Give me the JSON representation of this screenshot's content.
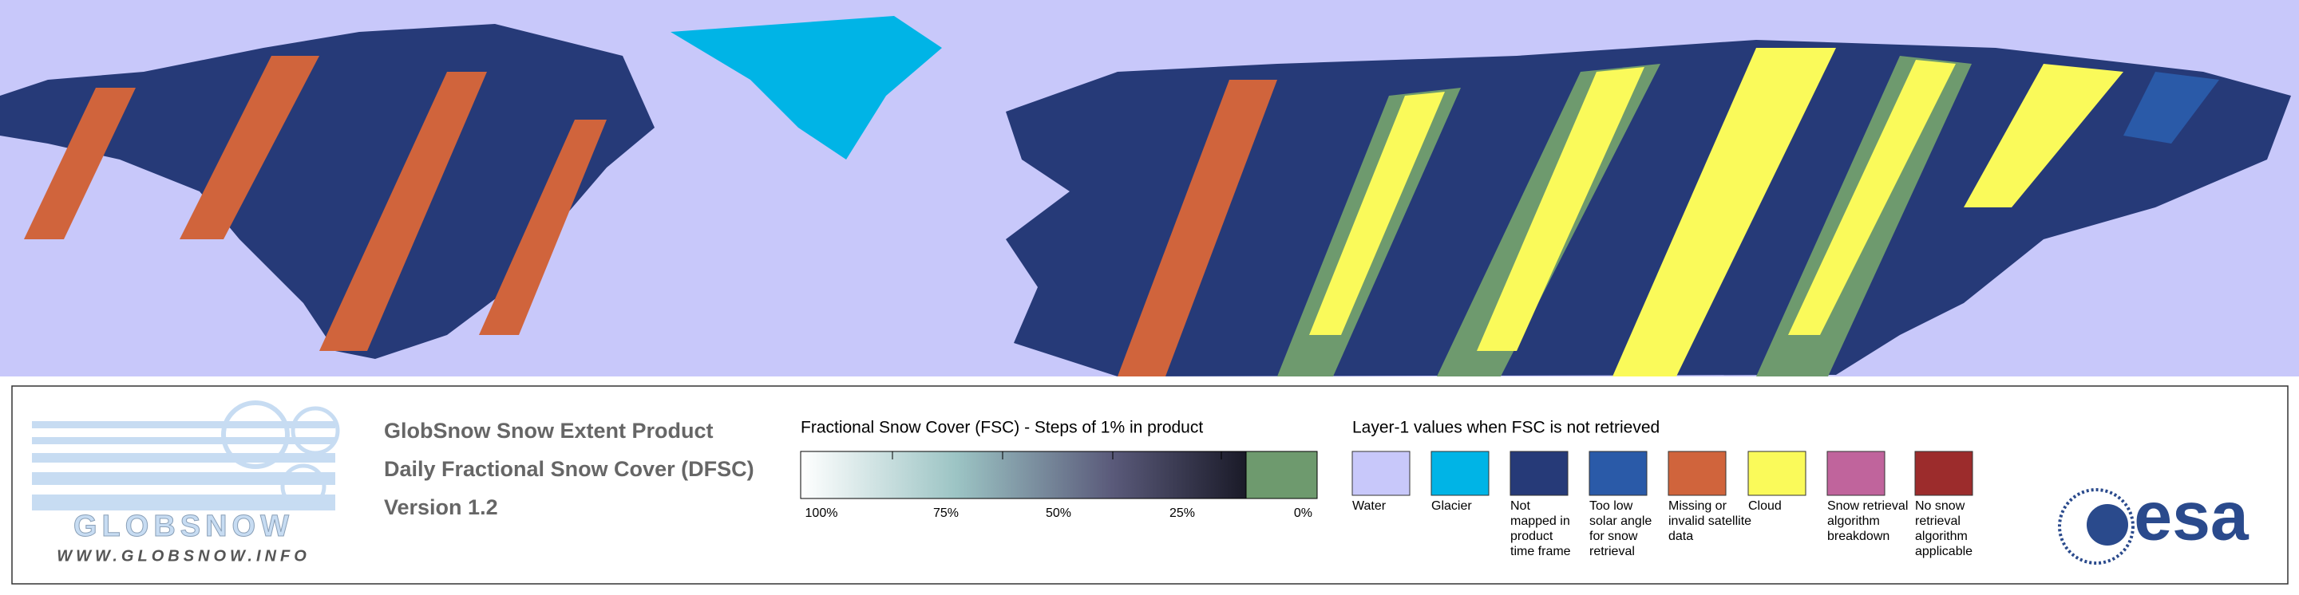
{
  "logo": {
    "name": "GLOBSNOW",
    "url": "WWW.GLOBSNOW.INFO"
  },
  "product": {
    "lines": [
      "GlobSnow Snow Extent Product",
      "Daily Fractional Snow Cover (DFSC)",
      "Version 1.2"
    ]
  },
  "fsc_scale": {
    "title": "Fractional Snow Cover (FSC) - Steps of 1% in product",
    "labels": [
      "100%",
      "75%",
      "50%",
      "25%",
      "0%"
    ]
  },
  "layer1": {
    "title": "Layer-1 values when FSC is not retrieved",
    "items": [
      {
        "color": "#c8c8fa",
        "label": [
          "Water"
        ]
      },
      {
        "color": "#00b4e6",
        "label": [
          "Glacier"
        ]
      },
      {
        "color": "#263a78",
        "label": [
          "Not",
          "mapped in",
          "product",
          "time frame"
        ]
      },
      {
        "color": "#2a5aa8",
        "label": [
          "Too low",
          "solar angle",
          "for snow",
          "retrieval"
        ]
      },
      {
        "color": "#d0643c",
        "label": [
          "Missing or",
          "invalid satellite",
          "data"
        ]
      },
      {
        "color": "#fafa5a",
        "label": [
          "Cloud"
        ]
      },
      {
        "color": "#c0649c",
        "label": [
          "Snow retrieval",
          "algorithm",
          "breakdown"
        ]
      },
      {
        "color": "#9c2c2c",
        "label": [
          "No snow",
          "retrieval",
          "algorithm",
          "applicable"
        ]
      }
    ]
  },
  "agency": "esa"
}
